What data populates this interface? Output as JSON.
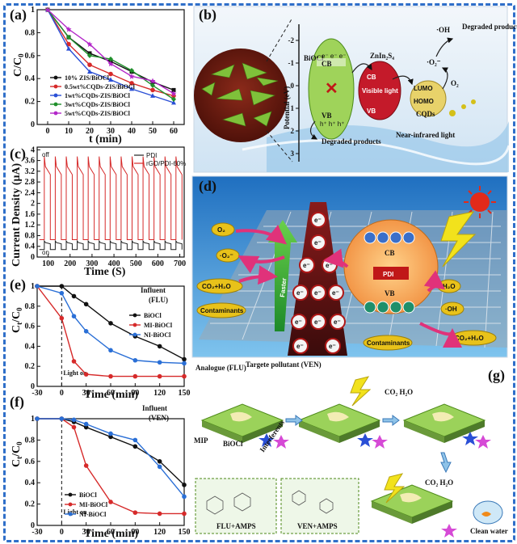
{
  "panels": {
    "a": {
      "label": "(a)",
      "ylabel": "C/C",
      "ylabel_sub": "0",
      "xlabel": "t (min)",
      "legend": [
        "10% ZIS/BiOCl",
        "0.5wt%CQDs-ZIS/BiOCl",
        "1wt%CQDs-ZIS/BiOCl",
        "3wt%CQDs-ZIS/BiOCl",
        "5wt%CQDs-ZIS/BiOCl"
      ],
      "colors": [
        "#111111",
        "#d62a2a",
        "#2a4fd6",
        "#1f8f2a",
        "#b327c9"
      ]
    },
    "b": {
      "label": "(b)",
      "potential_label": "Potential (eV)",
      "ticks": [
        "-2",
        "-1",
        "0",
        "1",
        "2",
        "3"
      ],
      "boiocl": "BiOCl",
      "zis": "ZnIn₂S₄",
      "cb": "CB",
      "vb": "VB",
      "visible_light": "Visible light",
      "lumo": "LUMO",
      "homo": "HOMO",
      "cqds": "CQDs",
      "nir": "Near-infrared light",
      "degraded1": "Degraded products",
      "degraded2": "Degraded products",
      "oh": "·OH",
      "o2rad": "·O₂⁻",
      "o2": "O₂",
      "electrons": "e⁻ e⁻ e⁻",
      "holes": "h⁺ h⁺ h⁺"
    },
    "c": {
      "label": "(c)",
      "ylabel": "Current Density (μA)",
      "xlabel": "Time (S)",
      "legend": [
        "PDI",
        "rGO/PDI-60%"
      ],
      "off_label": "off",
      "on_label": "on"
    },
    "d": {
      "label": "(d)",
      "faster": "Faster",
      "pdi": "PDI",
      "cb": "CB",
      "vb": "VB",
      "o2": "O₂",
      "o2rad": "·O₂⁻",
      "co2h2o_left": "CO₂+H₂O",
      "contaminants_left": "Contaminants",
      "h2o": "H₂O",
      "oh": "·OH",
      "contaminants_bottom": "Contaminants",
      "co2h2o_right": "CO₂+H₂O",
      "electron": "e⁻",
      "hole": "h⁺"
    },
    "e": {
      "label": "(e)",
      "ylabel": "C",
      "ylabel_sub": "t",
      "ylabel_rest": "/C",
      "ylabel_sub2": "0",
      "xlabel": "Time (min)",
      "influent": "Influent",
      "influent_sub": "(FLU)",
      "light_on": "Light on",
      "legend": [
        "BiOCl",
        "MI-BiOCl",
        "NI-BiOCl"
      ],
      "colors": [
        "#111111",
        "#d62a2a",
        "#2a6fd6"
      ]
    },
    "f": {
      "label": "(f)",
      "ylabel": "C",
      "ylabel_sub": "t",
      "ylabel_rest": "/C",
      "ylabel_sub2": "0",
      "xlabel": "Time (min)",
      "influent": "Influent",
      "influent_sub": "(VEN)",
      "light_on": "Light on",
      "legend": [
        "BiOCl",
        "MI-BiOCl",
        "NI-BiOCl"
      ],
      "colors": [
        "#111111",
        "#d62a2a",
        "#2a6fd6"
      ]
    },
    "g": {
      "label": "(g)",
      "analogue": "Analogue (FLU)",
      "target": "Targete pollutant (VEN)",
      "mip": "MIP",
      "boiocl": "BiOCl",
      "interferents": "Interferents",
      "co2h2o_1": "CO₂ H₂O",
      "co2h2o_2": "CO₂ H₂O",
      "flu_amps": "FLU+AMPS",
      "ven_amps": "VEN+AMPS",
      "clean_water": "Clean water"
    }
  },
  "chart_data": [
    {
      "id": "a",
      "type": "line",
      "xlabel": "t (min)",
      "ylabel": "C/C0",
      "xlim": [
        -5,
        65
      ],
      "ylim": [
        0,
        1.0
      ],
      "xticks": [
        0,
        10,
        20,
        30,
        40,
        50,
        60
      ],
      "yticks": [
        0,
        0.2,
        0.4,
        0.6,
        0.8,
        1.0
      ],
      "x": [
        0,
        10,
        20,
        30,
        40,
        50,
        60
      ],
      "series": [
        {
          "name": "10% ZIS/BiOCl",
          "values": [
            1.0,
            0.76,
            0.62,
            0.55,
            0.46,
            0.37,
            0.3
          ]
        },
        {
          "name": "0.5wt%CQDs-ZIS/BiOCl",
          "values": [
            1.0,
            0.7,
            0.52,
            0.44,
            0.36,
            0.3,
            0.25
          ]
        },
        {
          "name": "1wt%CQDs-ZIS/BiOCl",
          "values": [
            1.0,
            0.66,
            0.46,
            0.39,
            0.31,
            0.25,
            0.19
          ]
        },
        {
          "name": "3wt%CQDs-ZIS/BiOCl",
          "values": [
            1.0,
            0.76,
            0.6,
            0.57,
            0.47,
            0.34,
            0.22
          ]
        },
        {
          "name": "5wt%CQDs-ZIS/BiOCl",
          "values": [
            1.0,
            0.83,
            0.7,
            0.53,
            0.42,
            0.38,
            0.27
          ]
        }
      ]
    },
    {
      "id": "c",
      "type": "line",
      "xlabel": "Time (S)",
      "ylabel": "Current Density (μA)",
      "xlim": [
        50,
        720
      ],
      "ylim": [
        0,
        4.1
      ],
      "xticks": [
        100,
        200,
        300,
        400,
        500,
        600,
        700
      ],
      "yticks": [
        0,
        0.4,
        0.8,
        1.2,
        1.6,
        2.0,
        2.4,
        2.8,
        3.2,
        3.6,
        4.0
      ],
      "series": [
        {
          "name": "PDI",
          "baseline": 0.28,
          "on_level": 0.6,
          "pulses": 13
        },
        {
          "name": "rGO/PDI-60%",
          "baseline": 0.65,
          "on_level": 3.75,
          "pulses": 13
        }
      ]
    },
    {
      "id": "e",
      "type": "line",
      "xlabel": "Time (min)",
      "ylabel": "Ct/C0",
      "xlim": [
        -30,
        150
      ],
      "ylim": [
        0,
        1.0
      ],
      "xticks": [
        -30,
        0,
        30,
        60,
        90,
        120,
        150
      ],
      "yticks": [
        0,
        0.2,
        0.4,
        0.6,
        0.8,
        1.0
      ],
      "x": [
        -30,
        0,
        15,
        30,
        60,
        90,
        120,
        150
      ],
      "series": [
        {
          "name": "BiOCl",
          "values": [
            1.0,
            1.0,
            0.9,
            0.82,
            0.63,
            0.5,
            0.4,
            0.27
          ]
        },
        {
          "name": "MI-BiOCl",
          "values": [
            1.0,
            0.68,
            0.25,
            0.12,
            0.1,
            0.1,
            0.1,
            0.1
          ]
        },
        {
          "name": "NI-BiOCl",
          "values": [
            1.0,
            0.93,
            0.7,
            0.55,
            0.36,
            0.26,
            0.24,
            0.23
          ]
        }
      ]
    },
    {
      "id": "f",
      "type": "line",
      "xlabel": "Time (min)",
      "ylabel": "Ct/C0",
      "xlim": [
        -30,
        150
      ],
      "ylim": [
        0,
        1.0
      ],
      "xticks": [
        -30,
        0,
        30,
        60,
        90,
        120,
        150
      ],
      "yticks": [
        0,
        0.2,
        0.4,
        0.6,
        0.8,
        1.0
      ],
      "x": [
        -30,
        0,
        15,
        30,
        60,
        90,
        120,
        150
      ],
      "series": [
        {
          "name": "BiOCl",
          "values": [
            1.0,
            1.0,
            0.97,
            0.92,
            0.83,
            0.74,
            0.6,
            0.38
          ]
        },
        {
          "name": "MI-BiOCl",
          "values": [
            1.0,
            1.0,
            0.92,
            0.56,
            0.22,
            0.12,
            0.11,
            0.11
          ]
        },
        {
          "name": "NI-BiOCl",
          "values": [
            1.0,
            1.0,
            0.99,
            0.95,
            0.86,
            0.8,
            0.55,
            0.27
          ]
        }
      ]
    }
  ]
}
